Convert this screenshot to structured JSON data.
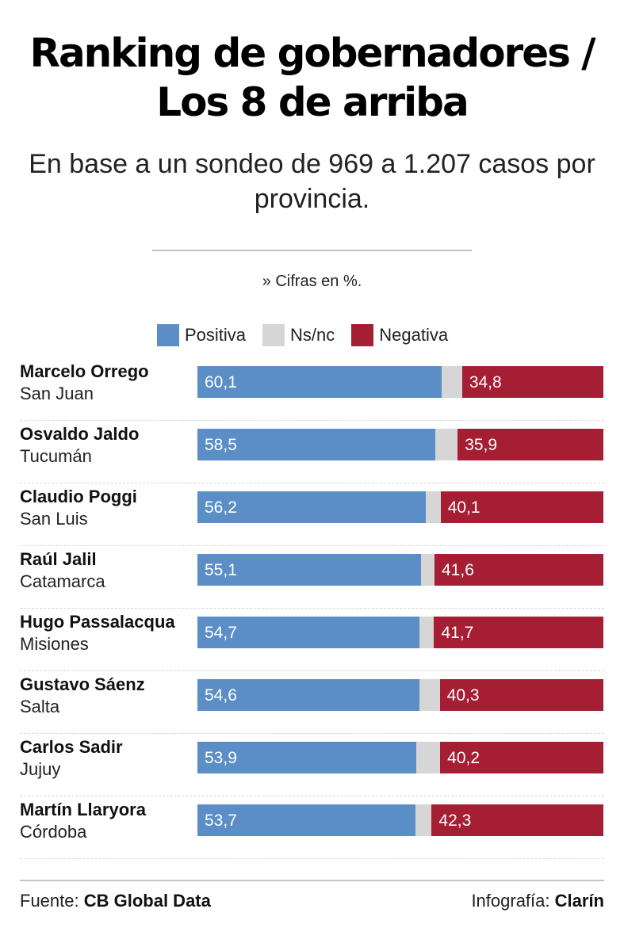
{
  "header": {
    "title_line1": "Ranking de gobernadores /",
    "title_line2": "Los 8 de arriba",
    "subtitle_line1": "En base a un sondeo de 969 a 1.207 casos por",
    "subtitle_line2": "provincia.",
    "note": "» Cifras en %."
  },
  "legend": [
    {
      "label": "Positiva",
      "color": "#5b8ec6"
    },
    {
      "label": "Ns/nc",
      "color": "#d6d6d6"
    },
    {
      "label": "Negativa",
      "color": "#a61e34"
    }
  ],
  "chart_data": {
    "type": "bar",
    "stacked": true,
    "orientation": "horizontal",
    "title": "Ranking de gobernadores / Los 8 de arriba",
    "subtitle": "En base a un sondeo de 969 a 1.207 casos por provincia.",
    "unit": "%",
    "xlim": [
      0,
      100
    ],
    "categories": [
      {
        "name": "Marcelo Orrego",
        "province": "San Juan"
      },
      {
        "name": "Osvaldo Jaldo",
        "province": "Tucumán"
      },
      {
        "name": "Claudio Poggi",
        "province": "San Luis"
      },
      {
        "name": "Raúl Jalil",
        "province": "Catamarca"
      },
      {
        "name": "Hugo Passalacqua",
        "province": "Misiones"
      },
      {
        "name": "Gustavo Sáenz",
        "province": "Salta"
      },
      {
        "name": "Carlos Sadir",
        "province": "Jujuy"
      },
      {
        "name": "Martín Llaryora",
        "province": "Córdoba"
      }
    ],
    "series": [
      {
        "name": "Positiva",
        "values": [
          60.1,
          58.5,
          56.2,
          55.1,
          54.7,
          54.6,
          53.9,
          53.7
        ]
      },
      {
        "name": "Ns/nc",
        "values": [
          5.1,
          5.6,
          3.7,
          3.3,
          3.6,
          5.1,
          5.9,
          4.0
        ]
      },
      {
        "name": "Negativa",
        "values": [
          34.8,
          35.9,
          40.1,
          41.6,
          41.7,
          40.3,
          40.2,
          42.3
        ]
      }
    ],
    "value_labels": {
      "positiva": [
        "60,1",
        "58,5",
        "56,2",
        "55,1",
        "54,7",
        "54,6",
        "53,9",
        "53,7"
      ],
      "negativa": [
        "34,8",
        "35,9",
        "40,1",
        "41,6",
        "41,7",
        "40,3",
        "40,2",
        "42,3"
      ]
    },
    "colors": {
      "positiva": "#5b8ec6",
      "nsnc": "#d6d6d6",
      "negativa": "#a61e34"
    }
  },
  "footer": {
    "source_prefix": "Fuente:",
    "source_name": "CB Global Data",
    "credit_prefix": "Infografía:",
    "credit_name": "Clarín"
  }
}
